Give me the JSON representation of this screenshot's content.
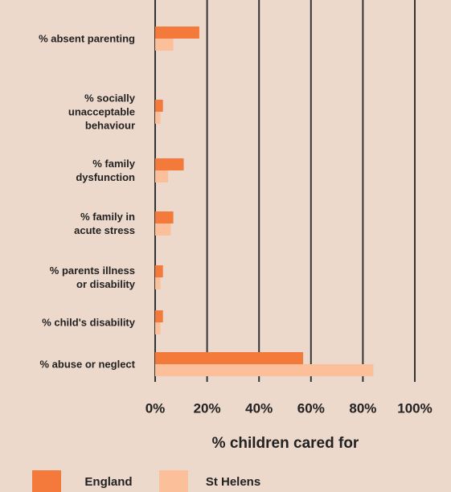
{
  "chart_data": {
    "type": "bar",
    "orientation": "horizontal",
    "categories": [
      "% absent parenting",
      "% socially\nunacceptable\nbehaviour",
      "% family\ndysfunction",
      "% family in\nacute stress",
      "% parents illness\nor disability",
      "% child's disability",
      "% abuse or neglect"
    ],
    "series": [
      {
        "name": "England",
        "color": "#f47a3c",
        "values": [
          17,
          3,
          11,
          7,
          3,
          3,
          57
        ]
      },
      {
        "name": "St Helens",
        "color": "#fbbf9a",
        "values": [
          7,
          2,
          5,
          6,
          2,
          2,
          84
        ]
      }
    ],
    "xlim": [
      0,
      100
    ],
    "xticks": [
      {
        "value": 0,
        "label": "0%"
      },
      {
        "value": 20,
        "label": "20%"
      },
      {
        "value": 40,
        "label": "40%"
      },
      {
        "value": 60,
        "label": "60%"
      },
      {
        "value": 80,
        "label": "80%"
      },
      {
        "value": 100,
        "label": "100%"
      }
    ],
    "xlabel": "% children cared for",
    "grid": true
  }
}
